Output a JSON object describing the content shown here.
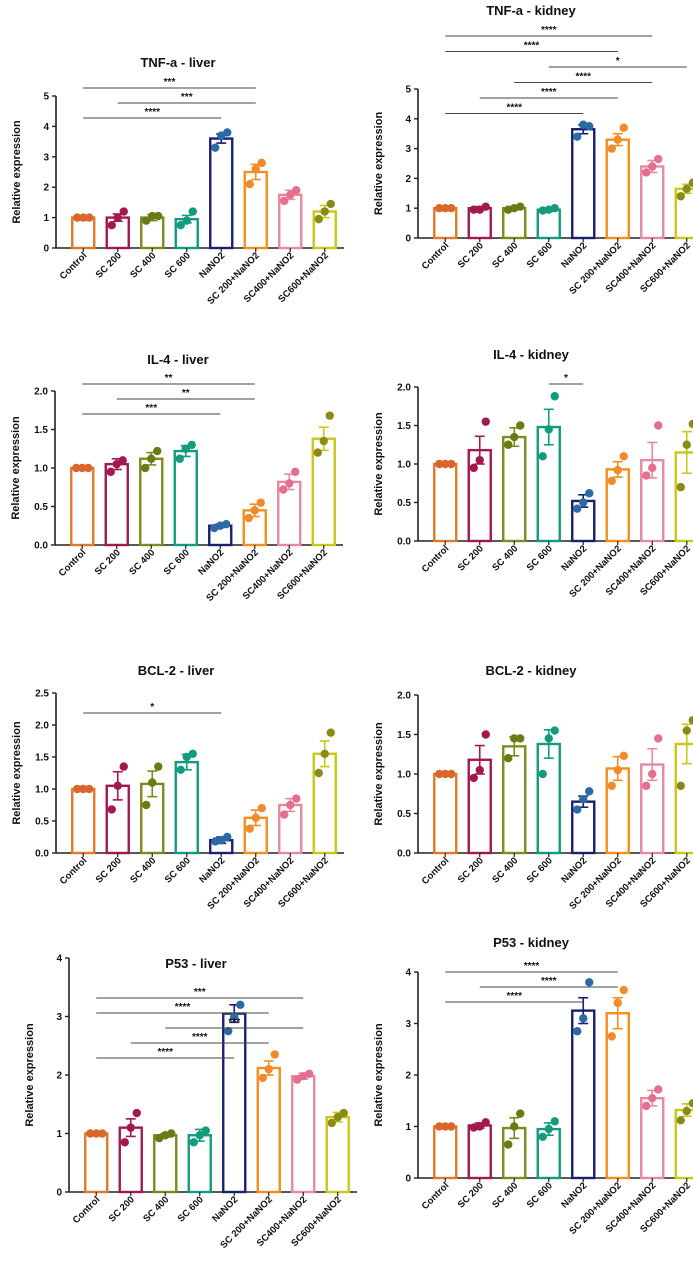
{
  "colors": {
    "bars": [
      "#e07a2a",
      "#a3194f",
      "#7d8b1e",
      "#129b7d",
      "#1a1f70",
      "#f28f1e",
      "#e7899f",
      "#c8c81a"
    ],
    "points": [
      "#d9662a",
      "#a3194f",
      "#6c7a16",
      "#129b7d",
      "#2d6aa5",
      "#f08a2c",
      "#e46f8e",
      "#8c8a16"
    ],
    "axis": "#222222"
  },
  "chart_data": [
    {
      "type": "bar",
      "title": "TNF-a - liver",
      "ylabel": "Relative expression",
      "ylim": [
        0,
        5
      ],
      "yticks": [
        "0",
        "1",
        "2",
        "3",
        "4",
        "5"
      ],
      "categories": [
        "Control",
        "SC 200",
        "SC 400",
        "SC 600",
        "NaNO2",
        "SC 200+NaNO2",
        "SC400+NaNO2",
        "SC600+NaNO2"
      ],
      "values": [
        1.0,
        1.0,
        1.0,
        0.95,
        3.6,
        2.5,
        1.75,
        1.2
      ],
      "errors": [
        0.03,
        0.12,
        0.1,
        0.12,
        0.15,
        0.25,
        0.15,
        0.2
      ],
      "points": [
        [
          1.0,
          1.0,
          1.0
        ],
        [
          0.75,
          1.0,
          1.2
        ],
        [
          0.9,
          1.05,
          1.05
        ],
        [
          0.75,
          0.9,
          1.2
        ],
        [
          3.3,
          3.7,
          3.8
        ],
        [
          2.1,
          2.6,
          2.8
        ],
        [
          1.55,
          1.75,
          1.9
        ],
        [
          0.95,
          1.2,
          1.45
        ]
      ],
      "comparisons": [
        {
          "from": 0,
          "to": 5,
          "label": "***"
        },
        {
          "from": 1,
          "to": 5,
          "label": "***"
        },
        {
          "from": 0,
          "to": 4,
          "label": "****"
        }
      ]
    },
    {
      "type": "bar",
      "title": "TNF-a - kidney",
      "ylabel": "Relative expression",
      "ylim": [
        0,
        5
      ],
      "yticks": [
        "0",
        "1",
        "2",
        "3",
        "4",
        "5"
      ],
      "categories": [
        "Control",
        "SC 200",
        "SC 400",
        "SC 600",
        "NaNO2",
        "SC 200+NaNO2",
        "SC400+NaNO2",
        "SC600+NaNO2"
      ],
      "values": [
        1.0,
        1.0,
        1.0,
        0.95,
        3.65,
        3.3,
        2.4,
        1.65
      ],
      "errors": [
        0.03,
        0.05,
        0.05,
        0.05,
        0.15,
        0.2,
        0.2,
        0.15
      ],
      "points": [
        [
          1.0,
          1.0,
          1.0
        ],
        [
          0.95,
          0.95,
          1.05
        ],
        [
          0.95,
          1.0,
          1.05
        ],
        [
          0.92,
          0.95,
          1.0
        ],
        [
          3.4,
          3.8,
          3.75
        ],
        [
          3.0,
          3.3,
          3.7
        ],
        [
          2.2,
          2.4,
          2.65
        ],
        [
          1.4,
          1.65,
          1.85
        ]
      ],
      "comparisons": [
        {
          "from": 0,
          "to": 6,
          "label": "****"
        },
        {
          "from": 0,
          "to": 5,
          "label": "****"
        },
        {
          "from": 3,
          "to": 7,
          "label": "*"
        },
        {
          "from": 2,
          "to": 6,
          "label": "****"
        },
        {
          "from": 1,
          "to": 5,
          "label": "****"
        },
        {
          "from": 0,
          "to": 4,
          "label": "****"
        }
      ]
    },
    {
      "type": "bar",
      "title": "IL-4 - liver",
      "ylabel": "Relative expression",
      "ylim": [
        0,
        2
      ],
      "yticks": [
        "0.0",
        "0.5",
        "1.0",
        "1.5",
        "2.0"
      ],
      "categories": [
        "Control",
        "SC 200",
        "SC 400",
        "SC 600",
        "NaNO2",
        "SC 200+NaNO2",
        "SC400+NaNO2",
        "SC600+NaNO2"
      ],
      "values": [
        1.0,
        1.05,
        1.12,
        1.22,
        0.25,
        0.45,
        0.82,
        1.38
      ],
      "errors": [
        0.02,
        0.07,
        0.08,
        0.07,
        0.02,
        0.08,
        0.1,
        0.15
      ],
      "points": [
        [
          1.0,
          1.0,
          1.0
        ],
        [
          0.95,
          1.05,
          1.1
        ],
        [
          1.0,
          1.12,
          1.22
        ],
        [
          1.12,
          1.25,
          1.3
        ],
        [
          0.22,
          0.25,
          0.27
        ],
        [
          0.35,
          0.45,
          0.55
        ],
        [
          0.72,
          0.8,
          0.95
        ],
        [
          1.2,
          1.35,
          1.68
        ]
      ],
      "comparisons": [
        {
          "from": 0,
          "to": 5,
          "label": "**"
        },
        {
          "from": 1,
          "to": 5,
          "label": "**"
        },
        {
          "from": 0,
          "to": 4,
          "label": "***"
        }
      ]
    },
    {
      "type": "bar",
      "title": "IL-4 - kidney",
      "ylabel": "Relative expression",
      "ylim": [
        0,
        2
      ],
      "yticks": [
        "0.0",
        "0.5",
        "1.0",
        "1.5",
        "2.0"
      ],
      "categories": [
        "Control",
        "SC 200",
        "SC 400",
        "SC 600",
        "NaNO2",
        "SC 200+NaNO2",
        "SC400+NaNO2",
        "SC600+NaNO2"
      ],
      "values": [
        1.0,
        1.18,
        1.35,
        1.48,
        0.52,
        0.93,
        1.05,
        1.15
      ],
      "errors": [
        0.02,
        0.18,
        0.12,
        0.23,
        0.08,
        0.1,
        0.23,
        0.27
      ],
      "points": [
        [
          1.0,
          1.0,
          1.0
        ],
        [
          0.95,
          1.05,
          1.55
        ],
        [
          1.25,
          1.35,
          1.5
        ],
        [
          1.1,
          1.45,
          1.88
        ],
        [
          0.42,
          0.5,
          0.62
        ],
        [
          0.78,
          0.92,
          1.1
        ],
        [
          0.85,
          0.95,
          1.5
        ],
        [
          0.7,
          1.25,
          1.52
        ]
      ],
      "comparisons": [
        {
          "from": 3,
          "to": 4,
          "label": "*"
        }
      ]
    },
    {
      "type": "bar",
      "title": "BCL-2 - liver",
      "ylabel": "Relative expression",
      "ylim": [
        0,
        2.5
      ],
      "yticks": [
        "0.0",
        "0.5",
        "1.0",
        "1.5",
        "2.0",
        "2.5"
      ],
      "categories": [
        "Control",
        "SC 200",
        "SC 400",
        "SC 600",
        "NaNO2",
        "SC 200+NaNO2",
        "SC400+NaNO2",
        "SC600+NaNO2"
      ],
      "values": [
        1.0,
        1.05,
        1.08,
        1.42,
        0.2,
        0.55,
        0.75,
        1.55
      ],
      "errors": [
        0.02,
        0.22,
        0.2,
        0.12,
        0.05,
        0.12,
        0.1,
        0.2
      ],
      "points": [
        [
          1.0,
          1.0,
          1.0
        ],
        [
          0.68,
          1.05,
          1.35
        ],
        [
          0.75,
          1.1,
          1.35
        ],
        [
          1.3,
          1.5,
          1.55
        ],
        [
          0.18,
          0.2,
          0.25
        ],
        [
          0.38,
          0.55,
          0.7
        ],
        [
          0.6,
          0.75,
          0.85
        ],
        [
          1.25,
          1.55,
          1.88
        ]
      ],
      "comparisons": [
        {
          "from": 0,
          "to": 4,
          "label": "*"
        }
      ]
    },
    {
      "type": "bar",
      "title": "BCL-2 - kidney",
      "ylabel": "Relative expression",
      "ylim": [
        0,
        2
      ],
      "yticks": [
        "0.0",
        "0.5",
        "1.0",
        "1.5",
        "2.0"
      ],
      "categories": [
        "Control",
        "SC 200",
        "SC 400",
        "SC 600",
        "NaNO2",
        "SC 200+NaNO2",
        "SC400+NaNO2",
        "SC600+NaNO2"
      ],
      "values": [
        1.0,
        1.18,
        1.35,
        1.38,
        0.65,
        1.07,
        1.12,
        1.38
      ],
      "errors": [
        0.02,
        0.18,
        0.12,
        0.18,
        0.07,
        0.15,
        0.2,
        0.25
      ],
      "points": [
        [
          1.0,
          1.0,
          1.0
        ],
        [
          0.95,
          1.05,
          1.5
        ],
        [
          1.2,
          1.45,
          1.45
        ],
        [
          1.0,
          1.45,
          1.55
        ],
        [
          0.55,
          0.68,
          0.78
        ],
        [
          0.85,
          1.05,
          1.23
        ],
        [
          0.85,
          1.0,
          1.45
        ],
        [
          0.85,
          1.55,
          1.68
        ]
      ],
      "comparisons": []
    },
    {
      "type": "bar",
      "title": "P53 - liver",
      "ylabel": "Relative expression",
      "ylim": [
        0,
        4
      ],
      "yticks": [
        "0",
        "1",
        "2",
        "3",
        "4"
      ],
      "categories": [
        "Control",
        "SC 200",
        "SC 400",
        "SC 600",
        "NaNO2",
        "SC 200+NaNO2",
        "SC400+NaNO2",
        "SC600+NaNO2"
      ],
      "values": [
        1.0,
        1.1,
        0.97,
        0.97,
        3.05,
        2.12,
        1.98,
        1.28
      ],
      "errors": [
        0.02,
        0.15,
        0.03,
        0.1,
        0.15,
        0.12,
        0.05,
        0.08
      ],
      "points": [
        [
          1.0,
          1.0,
          1.0
        ],
        [
          0.85,
          1.1,
          1.35
        ],
        [
          0.92,
          0.97,
          1.0
        ],
        [
          0.85,
          0.97,
          1.05
        ],
        [
          2.75,
          3.0,
          3.2
        ],
        [
          1.95,
          2.1,
          2.35
        ],
        [
          1.92,
          1.98,
          2.02
        ],
        [
          1.18,
          1.28,
          1.35
        ]
      ],
      "comparisons": [
        {
          "from": 0,
          "to": 6,
          "label": "***"
        },
        {
          "from": 0,
          "to": 5,
          "label": "****"
        },
        {
          "from": 2,
          "to": 6,
          "label": "***"
        },
        {
          "from": 1,
          "to": 5,
          "label": "****"
        },
        {
          "from": 0,
          "to": 4,
          "label": "****"
        }
      ]
    },
    {
      "type": "bar",
      "title": "P53 - kidney",
      "ylabel": "Relative expression",
      "ylim": [
        0,
        4
      ],
      "yticks": [
        "0",
        "1",
        "2",
        "3",
        "4"
      ],
      "categories": [
        "Control",
        "SC 200",
        "SC 400",
        "SC 600",
        "NaNO2",
        "SC 200+NaNO2",
        "SC400+NaNO2",
        "SC600+NaNO2"
      ],
      "values": [
        1.0,
        1.02,
        0.97,
        0.95,
        3.25,
        3.2,
        1.55,
        1.32
      ],
      "errors": [
        0.02,
        0.05,
        0.2,
        0.12,
        0.25,
        0.3,
        0.15,
        0.12
      ],
      "points": [
        [
          1.0,
          1.0,
          1.0
        ],
        [
          0.98,
          1.0,
          1.08
        ],
        [
          0.65,
          1.0,
          1.25
        ],
        [
          0.8,
          0.95,
          1.1
        ],
        [
          2.85,
          3.1,
          3.8
        ],
        [
          2.75,
          3.4,
          3.65
        ],
        [
          1.4,
          1.55,
          1.72
        ],
        [
          1.12,
          1.3,
          1.45
        ]
      ],
      "comparisons": [
        {
          "from": 0,
          "to": 5,
          "label": "****"
        },
        {
          "from": 1,
          "to": 5,
          "label": "****"
        },
        {
          "from": 0,
          "to": 4,
          "label": "****"
        }
      ]
    }
  ]
}
